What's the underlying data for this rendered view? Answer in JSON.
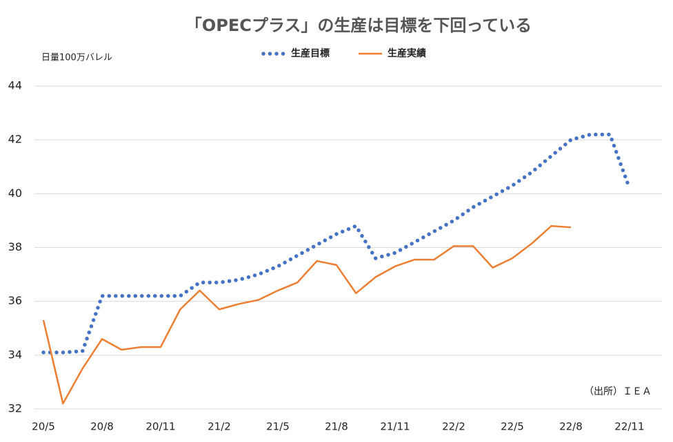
{
  "chart_data": {
    "type": "line",
    "title": "「OPECプラス」の生産は目標を下回っている",
    "y_label": "日量100万バレル",
    "source": "（出所）ＩＥＡ",
    "categories": [
      "20/5",
      null,
      null,
      "20/8",
      null,
      null,
      "20/11",
      null,
      null,
      "21/2",
      null,
      null,
      "21/5",
      null,
      null,
      "21/8",
      null,
      null,
      "21/11",
      null,
      null,
      "22/2",
      null,
      null,
      "22/5",
      null,
      null,
      "22/8",
      null,
      null,
      "22/11"
    ],
    "series": [
      {
        "name": "生産目標",
        "color": "#4472c4",
        "style": "dotted",
        "values": [
          34.1,
          34.1,
          34.15,
          36.2,
          36.2,
          36.2,
          36.2,
          36.2,
          36.7,
          36.7,
          36.8,
          37.0,
          37.3,
          37.7,
          38.1,
          38.5,
          38.8,
          37.6,
          37.8,
          38.2,
          38.6,
          39.0,
          39.5,
          39.9,
          40.3,
          40.8,
          41.4,
          42.0,
          42.2,
          42.2,
          40.2
        ]
      },
      {
        "name": "生産実績",
        "color": "#ed7d31",
        "style": "solid",
        "values": [
          35.3,
          32.2,
          33.5,
          34.6,
          34.2,
          34.3,
          34.3,
          35.7,
          36.4,
          35.7,
          35.9,
          36.05,
          36.4,
          36.7,
          37.5,
          37.35,
          36.3,
          36.9,
          37.3,
          37.55,
          37.55,
          38.05,
          38.05,
          37.25,
          37.6,
          38.15,
          38.8,
          38.75,
          null,
          null,
          null
        ]
      }
    ],
    "ylim": [
      32,
      44
    ],
    "yticks": [
      32,
      34,
      36,
      38,
      40,
      42,
      44
    ],
    "grid": true,
    "legend": "top"
  }
}
